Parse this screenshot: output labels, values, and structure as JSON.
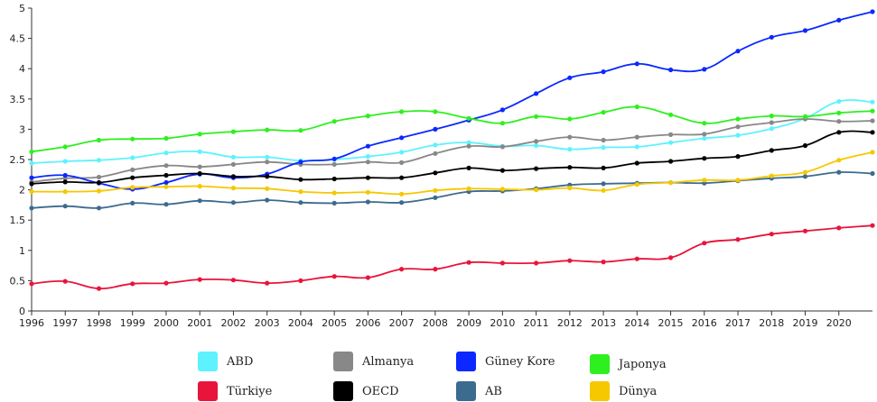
{
  "chart_data": {
    "type": "line",
    "title": "",
    "xlabel": "",
    "ylabel": "",
    "x": [
      1996,
      1997,
      1998,
      1999,
      2000,
      2001,
      2002,
      2003,
      2004,
      2005,
      2006,
      2007,
      2008,
      2009,
      2010,
      2011,
      2012,
      2013,
      2014,
      2015,
      2016,
      2017,
      2018,
      2019,
      2020,
      2021
    ],
    "xticks": [
      "1996",
      "1997",
      "1998",
      "1999",
      "2000",
      "2001",
      "2002",
      "2003",
      "2004",
      "2005",
      "2006",
      "2007",
      "2008",
      "2009",
      "2010",
      "2011",
      "2012",
      "2013",
      "2014",
      "2015",
      "2016",
      "2017",
      "2018",
      "2019",
      "2020"
    ],
    "ylim": [
      0,
      5
    ],
    "yticks": [
      "0",
      "0.5",
      "1",
      "1.5",
      "2",
      "2.5",
      "3",
      "3.5",
      "4",
      "4.5",
      "5"
    ],
    "grid": false,
    "legend_position": "bottom",
    "series": [
      {
        "name": "ABD",
        "color": "#5ef2ff",
        "values": [
          2.44,
          2.47,
          2.49,
          2.53,
          2.61,
          2.63,
          2.54,
          2.54,
          2.48,
          2.5,
          2.55,
          2.62,
          2.74,
          2.78,
          2.72,
          2.73,
          2.67,
          2.7,
          2.71,
          2.78,
          2.85,
          2.9,
          3.01,
          3.18,
          3.46,
          3.45
        ]
      },
      {
        "name": "Almanya",
        "color": "#888888",
        "values": [
          2.13,
          2.19,
          2.21,
          2.33,
          2.4,
          2.38,
          2.42,
          2.46,
          2.42,
          2.42,
          2.46,
          2.45,
          2.6,
          2.72,
          2.71,
          2.8,
          2.87,
          2.82,
          2.87,
          2.91,
          2.92,
          3.04,
          3.11,
          3.17,
          3.13,
          3.14
        ]
      },
      {
        "name": "Güney Kore",
        "color": "#0a28ff",
        "values": [
          2.2,
          2.24,
          2.11,
          2.01,
          2.12,
          2.26,
          2.2,
          2.26,
          2.46,
          2.51,
          2.72,
          2.86,
          3.0,
          3.15,
          3.32,
          3.59,
          3.85,
          3.95,
          4.08,
          3.98,
          3.99,
          4.29,
          4.52,
          4.63,
          4.8,
          4.94
        ]
      },
      {
        "name": "Japonya",
        "color": "#2ef01e",
        "values": [
          2.63,
          2.71,
          2.82,
          2.84,
          2.85,
          2.92,
          2.96,
          2.99,
          2.98,
          3.13,
          3.22,
          3.29,
          3.29,
          3.18,
          3.1,
          3.21,
          3.17,
          3.28,
          3.37,
          3.24,
          3.1,
          3.17,
          3.22,
          3.21,
          3.27,
          3.3
        ]
      },
      {
        "name": "Türkiye",
        "color": "#e8143c",
        "values": [
          0.45,
          0.49,
          0.37,
          0.45,
          0.46,
          0.52,
          0.51,
          0.46,
          0.5,
          0.57,
          0.55,
          0.69,
          0.69,
          0.8,
          0.79,
          0.79,
          0.83,
          0.81,
          0.86,
          0.88,
          1.12,
          1.18,
          1.27,
          1.32,
          1.37,
          1.41
        ]
      },
      {
        "name": "OECD",
        "color": "#000000",
        "values": [
          2.1,
          2.13,
          2.12,
          2.2,
          2.24,
          2.27,
          2.22,
          2.22,
          2.17,
          2.18,
          2.2,
          2.2,
          2.28,
          2.36,
          2.32,
          2.35,
          2.37,
          2.36,
          2.44,
          2.47,
          2.52,
          2.55,
          2.65,
          2.73,
          2.95,
          2.95
        ]
      },
      {
        "name": "AB",
        "color": "#3b6b8f",
        "values": [
          1.7,
          1.73,
          1.7,
          1.78,
          1.76,
          1.82,
          1.79,
          1.83,
          1.79,
          1.78,
          1.8,
          1.79,
          1.87,
          1.97,
          1.98,
          2.02,
          2.08,
          2.1,
          2.11,
          2.12,
          2.11,
          2.15,
          2.19,
          2.22,
          2.29,
          2.27
        ]
      },
      {
        "name": "Dünya",
        "color": "#f5c800",
        "values": [
          1.97,
          1.97,
          1.98,
          2.04,
          2.05,
          2.06,
          2.03,
          2.02,
          1.97,
          1.95,
          1.96,
          1.93,
          1.99,
          2.02,
          2.01,
          2.0,
          2.03,
          1.99,
          2.09,
          2.12,
          2.16,
          2.16,
          2.23,
          2.29,
          2.49,
          2.62
        ]
      }
    ]
  },
  "legend": [
    {
      "label": "ABD",
      "color": "#5ef2ff"
    },
    {
      "label": "Almanya",
      "color": "#888888"
    },
    {
      "label": "Güney Kore",
      "color": "#0a28ff"
    },
    {
      "label": "Japonya",
      "color": "#2ef01e"
    },
    {
      "label": "Türkiye",
      "color": "#e8143c"
    },
    {
      "label": "OECD",
      "color": "#000000"
    },
    {
      "label": "AB",
      "color": "#3b6b8f"
    },
    {
      "label": "Dünya",
      "color": "#f5c800"
    }
  ]
}
